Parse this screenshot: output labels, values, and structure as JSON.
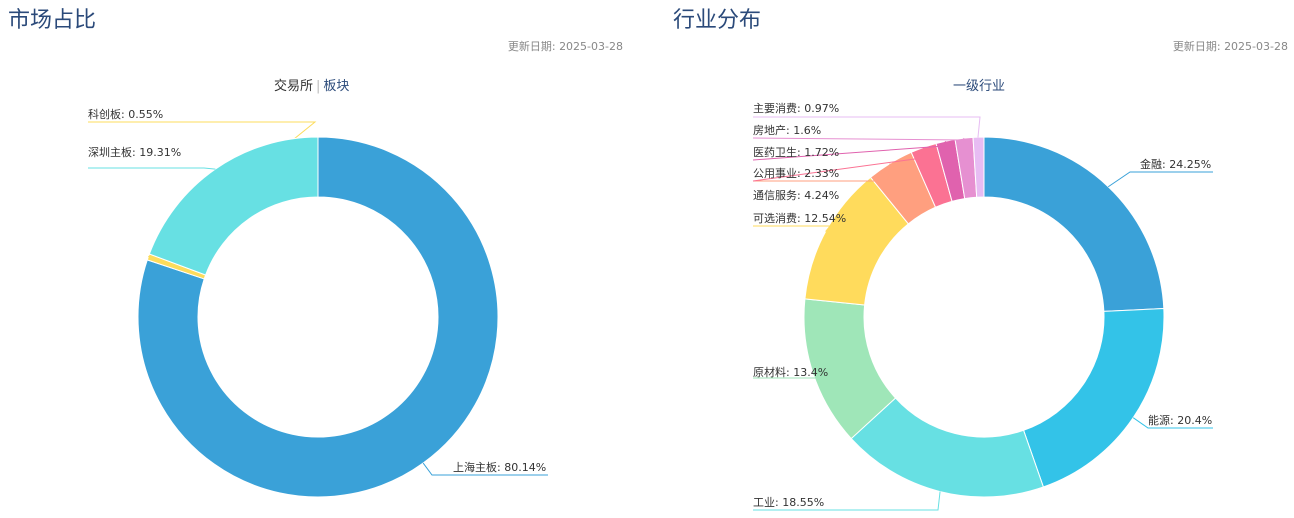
{
  "update_prefix": "更新日期: ",
  "left_panel": {
    "title": "市场占比",
    "update_date": "2025-03-28",
    "tabs": [
      {
        "label": "交易所",
        "active": true
      },
      {
        "label": "板块",
        "active": false
      }
    ]
  },
  "right_panel": {
    "title": "行业分布",
    "update_date": "2025-03-28",
    "tab": "一级行业"
  },
  "chart_data": [
    {
      "type": "pie",
      "variant": "donut",
      "categories": [
        "上海主板",
        "科创板",
        "深圳主板"
      ],
      "values": [
        80.14,
        0.55,
        19.31
      ],
      "colors": [
        "#3aa1d8",
        "#fcdc5c",
        "#67e0e3"
      ],
      "labels": [
        "上海主板: 80.14%",
        "科创板: 0.55%",
        "深圳主板: 19.31%"
      ]
    },
    {
      "type": "pie",
      "variant": "donut",
      "categories": [
        "金融",
        "能源",
        "工业",
        "原材料",
        "可选消费",
        "通信服务",
        "公用事业",
        "医药卫生",
        "房地产",
        "主要消费"
      ],
      "values": [
        24.25,
        20.4,
        18.55,
        13.4,
        12.54,
        4.24,
        2.33,
        1.72,
        1.6,
        0.97
      ],
      "colors": [
        "#3aa1d8",
        "#33c3e8",
        "#67e0e3",
        "#9fe6b8",
        "#ffdb5c",
        "#ff9f7f",
        "#fb7293",
        "#e062ae",
        "#e690d1",
        "#e7bcf3"
      ],
      "labels": [
        "金融: 24.25%",
        "能源: 20.4%",
        "工业: 18.55%",
        "原材料: 13.4%",
        "可选消费: 12.54%",
        "通信服务: 4.24%",
        "公用事业: 2.33%",
        "医药卫生: 1.72%",
        "房地产: 1.6%",
        "主要消费: 0.97%"
      ]
    }
  ]
}
